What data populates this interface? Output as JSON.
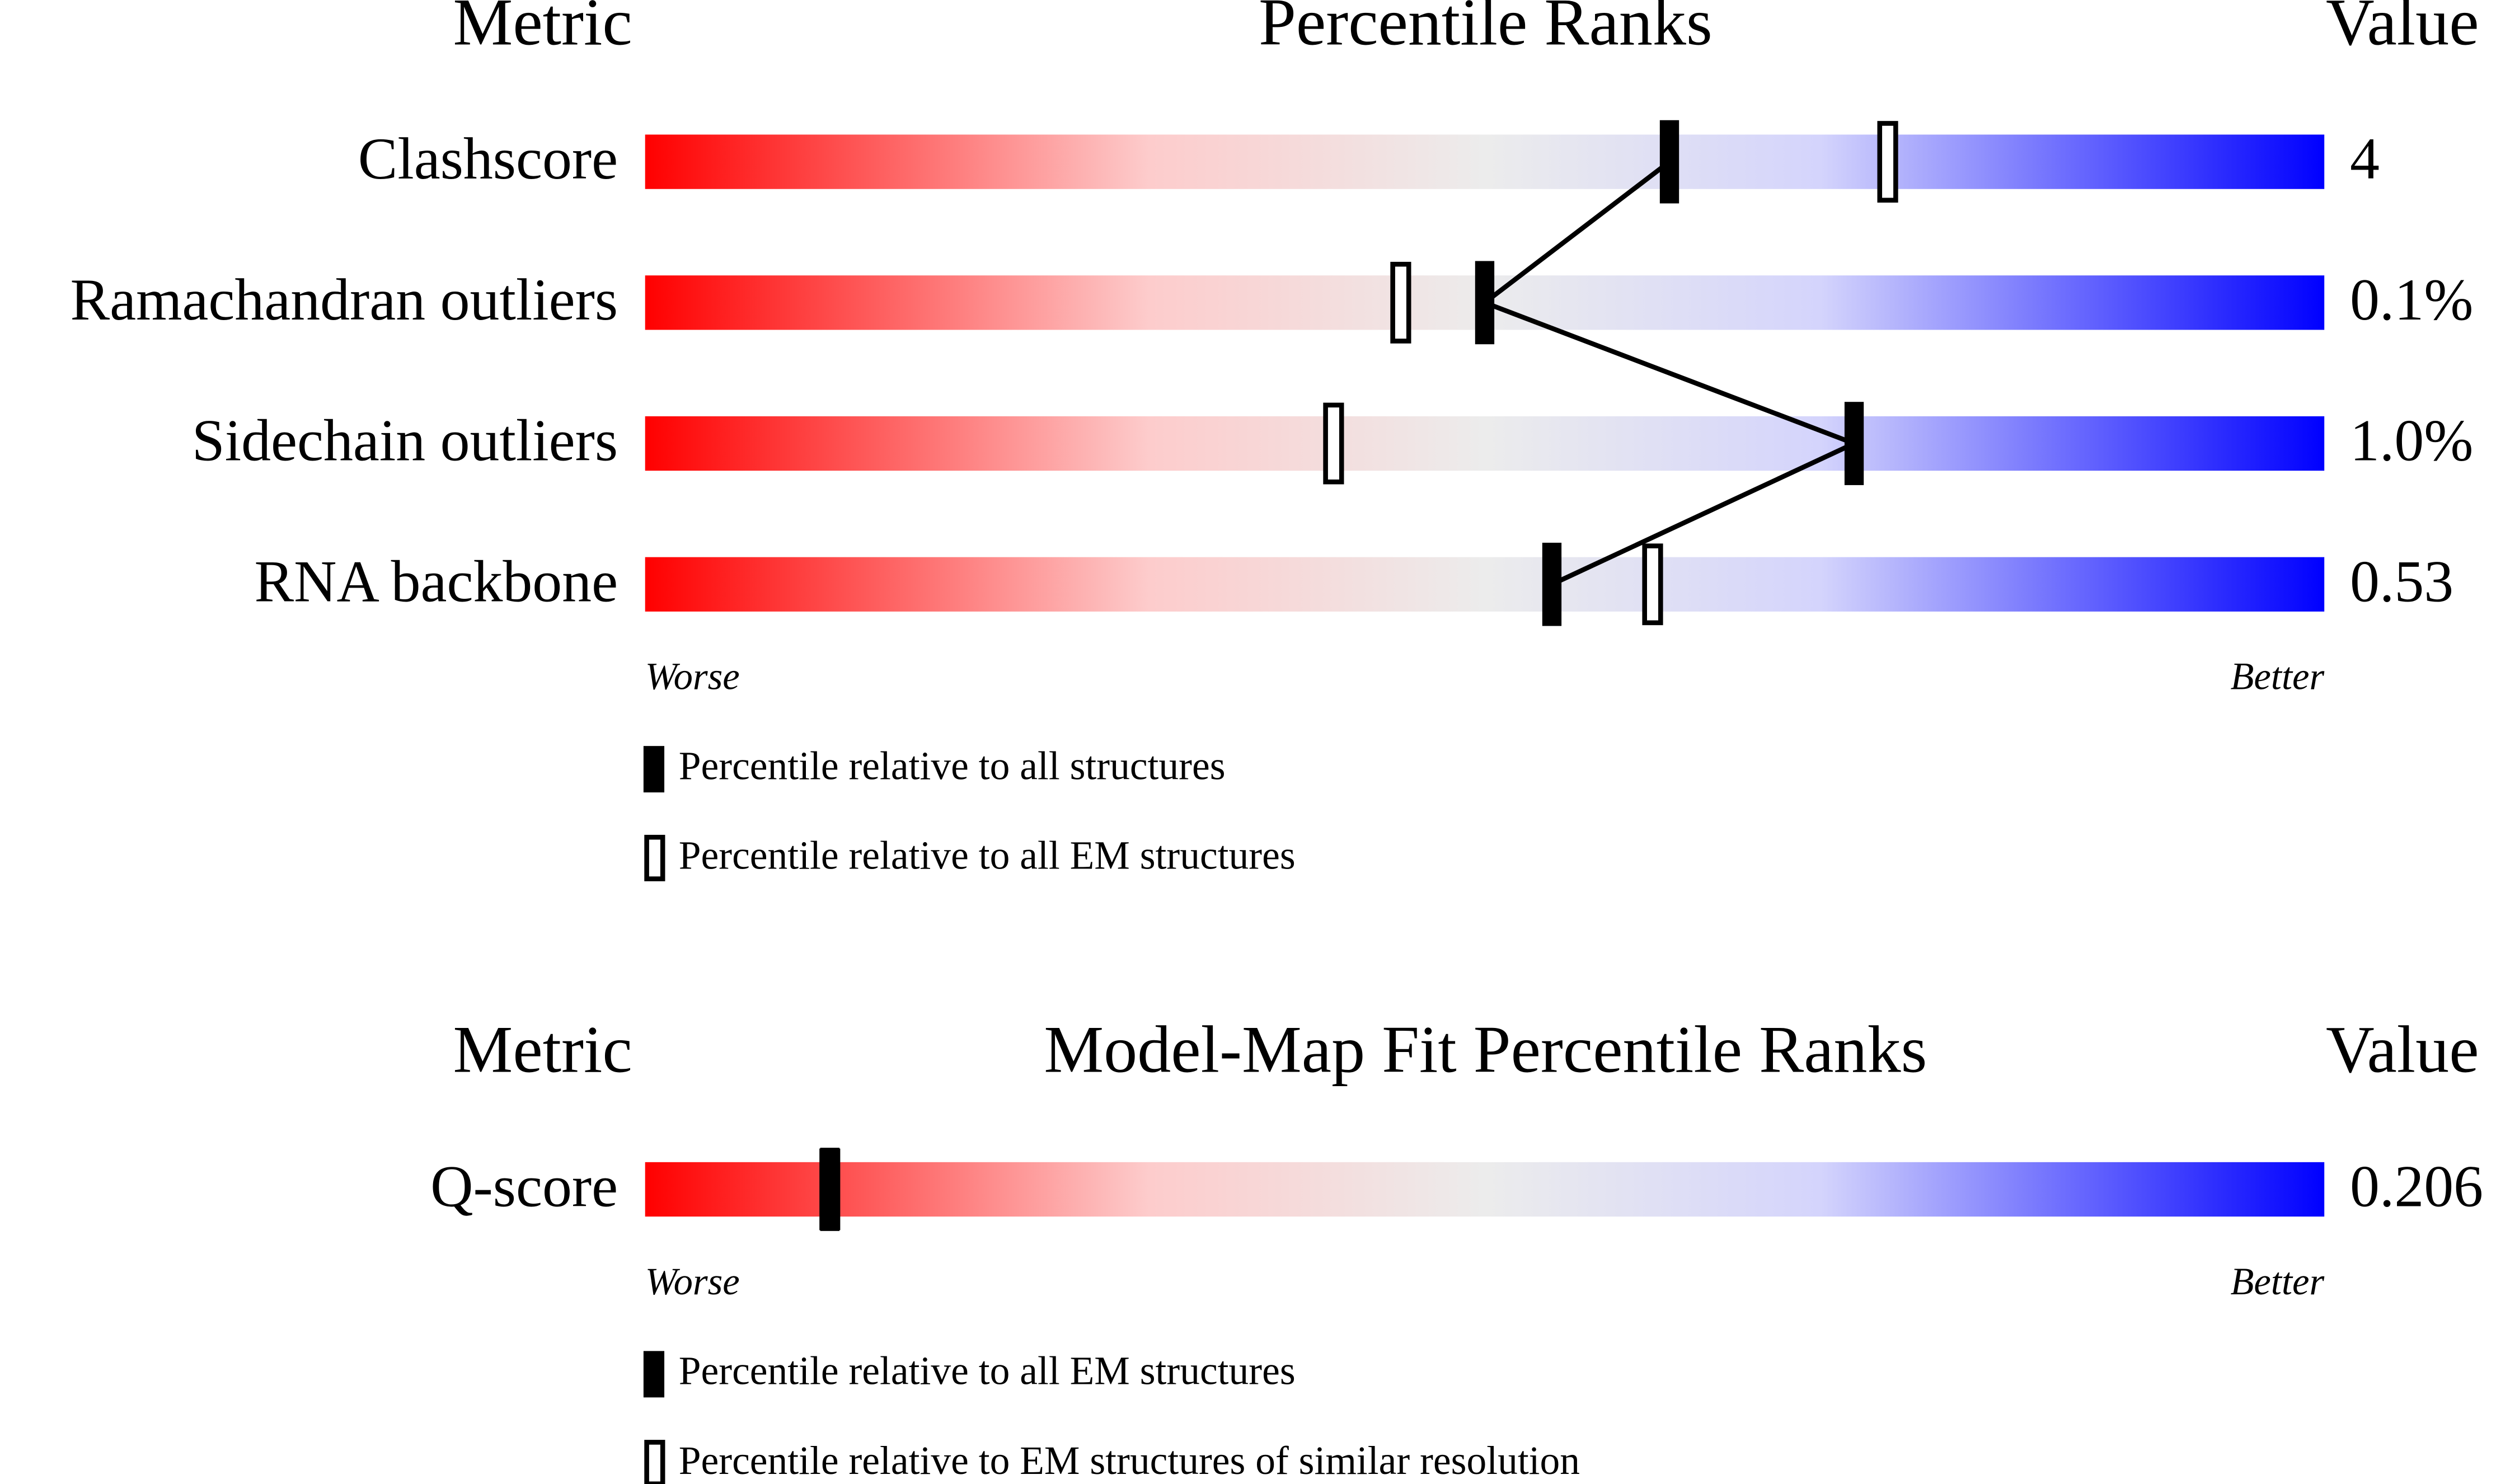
{
  "chart_data": [
    {
      "type": "percentile",
      "title": "Percentile Ranks",
      "metric_header": "Metric",
      "value_header": "Value",
      "categories": [
        "Clashscore",
        "Ramachandran outliers",
        "Sidechain outliers",
        "RNA backbone"
      ],
      "metric_values": [
        "4",
        "0.1%",
        "1.0%",
        "0.53"
      ],
      "xlim": [
        0,
        100
      ],
      "worse_label": "Worse",
      "better_label": "Better",
      "connect": true,
      "series": [
        {
          "name": "Percentile relative to all structures",
          "color": "#000000",
          "style": "filled",
          "values": [
            61,
            50,
            72,
            54
          ]
        },
        {
          "name": "Percentile relative to all EM structures",
          "color": "#000000",
          "style": "open",
          "values": [
            74,
            45,
            41,
            60
          ]
        }
      ]
    },
    {
      "type": "percentile",
      "title": "Model-Map Fit Percentile Ranks",
      "metric_header": "Metric",
      "value_header": "Value",
      "categories": [
        "Q-score"
      ],
      "metric_values": [
        "0.206"
      ],
      "xlim": [
        0,
        100
      ],
      "worse_label": "Worse",
      "better_label": "Better",
      "connect": false,
      "series": [
        {
          "name": "Percentile relative to all EM structures",
          "color": "#000000",
          "style": "filled",
          "values": [
            11
          ]
        },
        {
          "name": "Percentile relative to EM structures of similar resolution",
          "color": "#000000",
          "style": "open",
          "values": [
            11
          ]
        }
      ]
    }
  ]
}
